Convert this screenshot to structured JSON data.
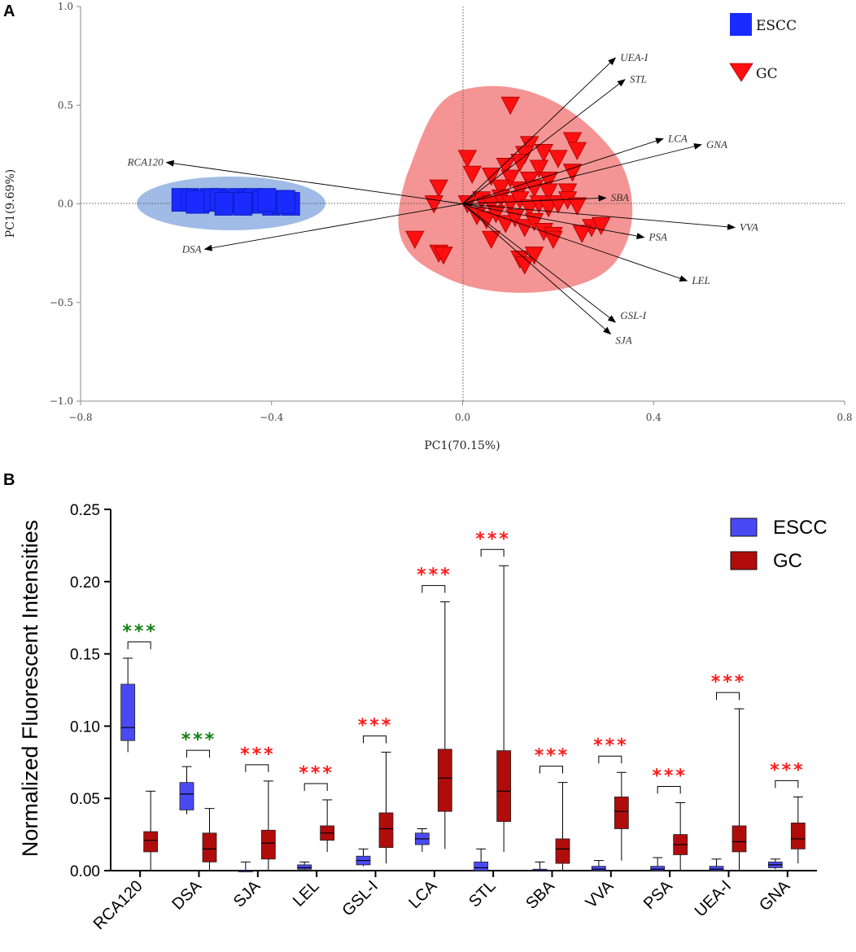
{
  "colors": {
    "escc_fill": "#1a2bff",
    "escc_hull": "#9fbbe6",
    "gc_fill": "#ff0f0f",
    "gc_hull": "#f59494",
    "escc_box": "#4a4af5",
    "gc_box": "#b00c0c",
    "sig_green": "#128012",
    "sig_red": "#ff1a1a"
  },
  "chart_data": [
    {
      "panel": "A",
      "type": "scatter",
      "xlabel": "PC1(70.15%)",
      "ylabel": "PC1(9.69%)",
      "xlim": [
        -0.8,
        0.8
      ],
      "ylim": [
        -1.0,
        1.0
      ],
      "x_ticks": [
        "−0.8",
        "−0.4",
        "0.0",
        "0.4",
        "0.8"
      ],
      "y_ticks": [
        "1.0",
        "0.5",
        "0.0",
        "−0.5",
        "−1.0"
      ],
      "legend": [
        "ESCC",
        "GC"
      ],
      "series": [
        {
          "name": "ESCC",
          "marker": "square",
          "points": [
            [
              -0.59,
              0.02
            ],
            [
              -0.57,
              0.02
            ],
            [
              -0.55,
              0.01
            ],
            [
              -0.53,
              0.02
            ],
            [
              -0.51,
              0.02
            ],
            [
              -0.49,
              0.01
            ],
            [
              -0.47,
              0.02
            ],
            [
              -0.45,
              0.01
            ],
            [
              -0.44,
              0.02
            ],
            [
              -0.42,
              0.01
            ],
            [
              -0.4,
              0.0
            ],
            [
              -0.38,
              0.01
            ],
            [
              -0.36,
              0.0
            ],
            [
              -0.56,
              0.01
            ],
            [
              -0.5,
              0.0
            ],
            [
              -0.46,
              0.0
            ],
            [
              -0.41,
              0.02
            ],
            [
              -0.37,
              0.01
            ]
          ]
        },
        {
          "name": "GC",
          "marker": "triangle-down",
          "points": [
            [
              0.1,
              0.5
            ],
            [
              0.14,
              0.3
            ],
            [
              0.23,
              0.32
            ],
            [
              0.24,
              0.27
            ],
            [
              0.13,
              0.25
            ],
            [
              0.17,
              0.26
            ],
            [
              0.2,
              0.23
            ],
            [
              0.12,
              0.21
            ],
            [
              0.09,
              0.19
            ],
            [
              0.16,
              0.18
            ],
            [
              0.23,
              0.16
            ],
            [
              0.01,
              0.23
            ],
            [
              0.02,
              0.15
            ],
            [
              0.06,
              0.14
            ],
            [
              0.1,
              0.13
            ],
            [
              0.14,
              0.12
            ],
            [
              0.18,
              0.12
            ],
            [
              0.08,
              0.08
            ],
            [
              0.12,
              0.07
            ],
            [
              0.15,
              0.08
            ],
            [
              0.18,
              0.06
            ],
            [
              0.22,
              0.06
            ],
            [
              -0.05,
              0.08
            ],
            [
              -0.06,
              0.0
            ],
            [
              0.01,
              0.0
            ],
            [
              0.04,
              0.02
            ],
            [
              0.06,
              0.0
            ],
            [
              0.08,
              0.03
            ],
            [
              0.1,
              0.0
            ],
            [
              0.12,
              0.02
            ],
            [
              0.14,
              -0.02
            ],
            [
              0.16,
              0.0
            ],
            [
              0.18,
              -0.02
            ],
            [
              0.2,
              0.0
            ],
            [
              0.22,
              0.02
            ],
            [
              0.24,
              -0.01
            ],
            [
              0.03,
              -0.06
            ],
            [
              0.05,
              -0.08
            ],
            [
              0.07,
              -0.05
            ],
            [
              0.09,
              -0.1
            ],
            [
              0.11,
              -0.07
            ],
            [
              0.13,
              -0.12
            ],
            [
              0.15,
              -0.09
            ],
            [
              0.17,
              -0.14
            ],
            [
              0.19,
              -0.16
            ],
            [
              0.27,
              -0.12
            ],
            [
              0.29,
              -0.11
            ],
            [
              -0.1,
              -0.18
            ],
            [
              -0.05,
              -0.25
            ],
            [
              -0.04,
              -0.26
            ],
            [
              0.06,
              -0.18
            ],
            [
              0.12,
              -0.28
            ],
            [
              0.13,
              -0.31
            ],
            [
              0.15,
              -0.26
            ],
            [
              0.19,
              -0.18
            ],
            [
              0.25,
              -0.15
            ]
          ]
        }
      ],
      "vectors": [
        {
          "label": "RCA120",
          "x": -0.62,
          "y": 0.21
        },
        {
          "label": "DSA",
          "x": -0.54,
          "y": -0.23
        },
        {
          "label": "UEA-I",
          "x": 0.32,
          "y": 0.74
        },
        {
          "label": "STL",
          "x": 0.34,
          "y": 0.63
        },
        {
          "label": "LCA",
          "x": 0.42,
          "y": 0.33
        },
        {
          "label": "GNA",
          "x": 0.5,
          "y": 0.3
        },
        {
          "label": "SBA",
          "x": 0.3,
          "y": 0.03
        },
        {
          "label": "VVA",
          "x": 0.57,
          "y": -0.12
        },
        {
          "label": "PSA",
          "x": 0.38,
          "y": -0.17
        },
        {
          "label": "LEL",
          "x": 0.47,
          "y": -0.39
        },
        {
          "label": "GSL-I",
          "x": 0.32,
          "y": -0.6
        },
        {
          "label": "SJA",
          "x": 0.31,
          "y": -0.66
        }
      ]
    },
    {
      "panel": "B",
      "type": "box",
      "ylabel": "Normalized Fluorescent Intensities",
      "ylim": [
        0.0,
        0.25
      ],
      "y_ticks": [
        "0.25",
        "0.20",
        "0.15",
        "0.10",
        "0.05",
        "0.00"
      ],
      "legend": [
        "ESCC",
        "GC"
      ],
      "categories": [
        "RCA120",
        "DSA",
        "SJA",
        "LEL",
        "GSL-I",
        "LCA",
        "STL",
        "SBA",
        "VVA",
        "PSA",
        "UEA-I",
        "GNA"
      ],
      "significance": [
        "***",
        "***",
        "***",
        "***",
        "***",
        "***",
        "***",
        "***",
        "***",
        "***",
        "***",
        "***"
      ],
      "significance_color": [
        "green",
        "green",
        "red",
        "red",
        "red",
        "red",
        "red",
        "red",
        "red",
        "red",
        "red",
        "red"
      ],
      "series": [
        {
          "name": "ESCC",
          "boxes": [
            {
              "min": 0.082,
              "q1": 0.09,
              "median": 0.099,
              "q3": 0.129,
              "max": 0.147
            },
            {
              "min": 0.039,
              "q1": 0.042,
              "median": 0.053,
              "q3": 0.061,
              "max": 0.072
            },
            {
              "min": 0.0,
              "q1": 0.0,
              "median": 0.0,
              "q3": 0.0,
              "max": 0.006
            },
            {
              "min": 0.0,
              "q1": 0.001,
              "median": 0.002,
              "q3": 0.004,
              "max": 0.006
            },
            {
              "min": 0.003,
              "q1": 0.004,
              "median": 0.007,
              "q3": 0.01,
              "max": 0.015
            },
            {
              "min": 0.013,
              "q1": 0.018,
              "median": 0.022,
              "q3": 0.026,
              "max": 0.029
            },
            {
              "min": 0.0,
              "q1": 0.0,
              "median": 0.002,
              "q3": 0.006,
              "max": 0.015
            },
            {
              "min": 0.0,
              "q1": 0.0,
              "median": 0.0,
              "q3": 0.001,
              "max": 0.006
            },
            {
              "min": 0.0,
              "q1": 0.0,
              "median": 0.001,
              "q3": 0.003,
              "max": 0.007
            },
            {
              "min": 0.0,
              "q1": 0.0,
              "median": 0.001,
              "q3": 0.003,
              "max": 0.009
            },
            {
              "min": 0.0,
              "q1": 0.0,
              "median": 0.001,
              "q3": 0.003,
              "max": 0.008
            },
            {
              "min": 0.001,
              "q1": 0.002,
              "median": 0.004,
              "q3": 0.006,
              "max": 0.008
            }
          ]
        },
        {
          "name": "GC",
          "boxes": [
            {
              "min": 0.0,
              "q1": 0.013,
              "median": 0.021,
              "q3": 0.027,
              "max": 0.055
            },
            {
              "min": 0.0,
              "q1": 0.006,
              "median": 0.015,
              "q3": 0.026,
              "max": 0.043
            },
            {
              "min": 0.0,
              "q1": 0.008,
              "median": 0.019,
              "q3": 0.028,
              "max": 0.062
            },
            {
              "min": 0.013,
              "q1": 0.021,
              "median": 0.026,
              "q3": 0.031,
              "max": 0.049
            },
            {
              "min": 0.005,
              "q1": 0.016,
              "median": 0.029,
              "q3": 0.04,
              "max": 0.082
            },
            {
              "min": 0.015,
              "q1": 0.041,
              "median": 0.064,
              "q3": 0.084,
              "max": 0.186
            },
            {
              "min": 0.013,
              "q1": 0.034,
              "median": 0.055,
              "q3": 0.083,
              "max": 0.211
            },
            {
              "min": 0.0,
              "q1": 0.005,
              "median": 0.015,
              "q3": 0.022,
              "max": 0.061
            },
            {
              "min": 0.007,
              "q1": 0.029,
              "median": 0.041,
              "q3": 0.051,
              "max": 0.068
            },
            {
              "min": 0.0,
              "q1": 0.011,
              "median": 0.018,
              "q3": 0.025,
              "max": 0.047
            },
            {
              "min": 0.0,
              "q1": 0.013,
              "median": 0.02,
              "q3": 0.031,
              "max": 0.112
            },
            {
              "min": 0.005,
              "q1": 0.015,
              "median": 0.022,
              "q3": 0.033,
              "max": 0.051
            }
          ]
        }
      ]
    }
  ],
  "panel_labels": {
    "a": "A",
    "b": "B"
  }
}
